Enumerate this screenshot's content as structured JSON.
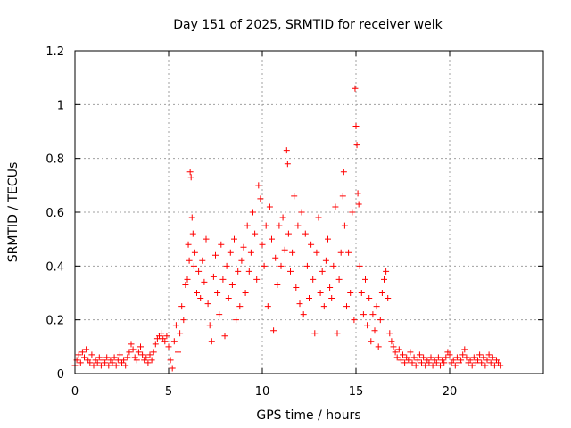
{
  "chart_data": {
    "type": "scatter",
    "title": "Day 151 of 2025, SRMTID for receiver welk",
    "xlabel": "GPS time / hours",
    "ylabel": "SRMTID / TECUs",
    "xlim": [
      0,
      25
    ],
    "ylim": [
      0,
      1.2
    ],
    "xticks": [
      0,
      5,
      10,
      15,
      20
    ],
    "xtick_labels": [
      "0",
      "5",
      "10",
      "15",
      "20"
    ],
    "yticks": [
      0,
      0.2,
      0.4,
      0.6,
      0.8,
      1,
      1.2
    ],
    "ytick_labels": [
      "0",
      "0.2",
      "0.4",
      "0.6",
      "0.8",
      "1",
      "1.2"
    ],
    "grid": true,
    "marker": "+",
    "color": "#ff0000",
    "series": [
      {
        "name": "SRMTID",
        "points": [
          [
            0.0,
            0.03
          ],
          [
            0.1,
            0.05
          ],
          [
            0.2,
            0.07
          ],
          [
            0.3,
            0.04
          ],
          [
            0.4,
            0.08
          ],
          [
            0.5,
            0.06
          ],
          [
            0.6,
            0.09
          ],
          [
            0.7,
            0.05
          ],
          [
            0.8,
            0.04
          ],
          [
            0.9,
            0.07
          ],
          [
            1.0,
            0.03
          ],
          [
            1.1,
            0.05
          ],
          [
            1.2,
            0.04
          ],
          [
            1.3,
            0.06
          ],
          [
            1.4,
            0.03
          ],
          [
            1.5,
            0.05
          ],
          [
            1.6,
            0.04
          ],
          [
            1.7,
            0.06
          ],
          [
            1.8,
            0.03
          ],
          [
            1.9,
            0.05
          ],
          [
            2.0,
            0.04
          ],
          [
            2.1,
            0.06
          ],
          [
            2.2,
            0.03
          ],
          [
            2.3,
            0.05
          ],
          [
            2.4,
            0.07
          ],
          [
            2.5,
            0.04
          ],
          [
            2.6,
            0.05
          ],
          [
            2.7,
            0.03
          ],
          [
            2.8,
            0.06
          ],
          [
            2.9,
            0.08
          ],
          [
            3.0,
            0.11
          ],
          [
            3.1,
            0.09
          ],
          [
            3.2,
            0.06
          ],
          [
            3.3,
            0.05
          ],
          [
            3.4,
            0.08
          ],
          [
            3.5,
            0.1
          ],
          [
            3.6,
            0.07
          ],
          [
            3.7,
            0.05
          ],
          [
            3.8,
            0.06
          ],
          [
            3.9,
            0.04
          ],
          [
            4.0,
            0.07
          ],
          [
            4.1,
            0.05
          ],
          [
            4.2,
            0.08
          ],
          [
            4.3,
            0.11
          ],
          [
            4.4,
            0.13
          ],
          [
            4.5,
            0.14
          ],
          [
            4.6,
            0.15
          ],
          [
            4.7,
            0.13
          ],
          [
            4.8,
            0.12
          ],
          [
            4.9,
            0.14
          ],
          [
            5.0,
            0.1
          ],
          [
            5.1,
            0.05
          ],
          [
            5.2,
            0.02
          ],
          [
            5.3,
            0.12
          ],
          [
            5.4,
            0.18
          ],
          [
            5.5,
            0.08
          ],
          [
            5.6,
            0.15
          ],
          [
            5.7,
            0.25
          ],
          [
            5.8,
            0.2
          ],
          [
            5.9,
            0.33
          ],
          [
            6.0,
            0.35
          ],
          [
            6.05,
            0.48
          ],
          [
            6.1,
            0.42
          ],
          [
            6.15,
            0.75
          ],
          [
            6.2,
            0.73
          ],
          [
            6.25,
            0.58
          ],
          [
            6.3,
            0.52
          ],
          [
            6.35,
            0.4
          ],
          [
            6.4,
            0.45
          ],
          [
            6.5,
            0.3
          ],
          [
            6.6,
            0.38
          ],
          [
            6.7,
            0.28
          ],
          [
            6.8,
            0.42
          ],
          [
            6.9,
            0.34
          ],
          [
            7.0,
            0.5
          ],
          [
            7.1,
            0.26
          ],
          [
            7.2,
            0.18
          ],
          [
            7.3,
            0.12
          ],
          [
            7.4,
            0.36
          ],
          [
            7.5,
            0.44
          ],
          [
            7.6,
            0.3
          ],
          [
            7.7,
            0.22
          ],
          [
            7.8,
            0.48
          ],
          [
            7.9,
            0.35
          ],
          [
            8.0,
            0.14
          ],
          [
            8.1,
            0.4
          ],
          [
            8.2,
            0.28
          ],
          [
            8.3,
            0.45
          ],
          [
            8.4,
            0.33
          ],
          [
            8.5,
            0.5
          ],
          [
            8.6,
            0.2
          ],
          [
            8.7,
            0.38
          ],
          [
            8.8,
            0.25
          ],
          [
            8.9,
            0.42
          ],
          [
            9.0,
            0.47
          ],
          [
            9.1,
            0.3
          ],
          [
            9.2,
            0.55
          ],
          [
            9.3,
            0.38
          ],
          [
            9.4,
            0.45
          ],
          [
            9.5,
            0.6
          ],
          [
            9.6,
            0.52
          ],
          [
            9.7,
            0.35
          ],
          [
            9.8,
            0.7
          ],
          [
            9.9,
            0.65
          ],
          [
            10.0,
            0.48
          ],
          [
            10.1,
            0.4
          ],
          [
            10.2,
            0.55
          ],
          [
            10.3,
            0.25
          ],
          [
            10.4,
            0.62
          ],
          [
            10.5,
            0.5
          ],
          [
            10.6,
            0.16
          ],
          [
            10.7,
            0.43
          ],
          [
            10.8,
            0.33
          ],
          [
            10.9,
            0.55
          ],
          [
            11.0,
            0.4
          ],
          [
            11.1,
            0.58
          ],
          [
            11.2,
            0.46
          ],
          [
            11.3,
            0.83
          ],
          [
            11.35,
            0.78
          ],
          [
            11.4,
            0.52
          ],
          [
            11.5,
            0.38
          ],
          [
            11.6,
            0.45
          ],
          [
            11.7,
            0.66
          ],
          [
            11.8,
            0.32
          ],
          [
            11.9,
            0.55
          ],
          [
            12.0,
            0.26
          ],
          [
            12.1,
            0.6
          ],
          [
            12.2,
            0.22
          ],
          [
            12.3,
            0.52
          ],
          [
            12.4,
            0.4
          ],
          [
            12.5,
            0.28
          ],
          [
            12.6,
            0.48
          ],
          [
            12.7,
            0.35
          ],
          [
            12.8,
            0.15
          ],
          [
            12.9,
            0.45
          ],
          [
            13.0,
            0.58
          ],
          [
            13.1,
            0.3
          ],
          [
            13.2,
            0.38
          ],
          [
            13.3,
            0.25
          ],
          [
            13.4,
            0.42
          ],
          [
            13.5,
            0.5
          ],
          [
            13.6,
            0.32
          ],
          [
            13.7,
            0.28
          ],
          [
            13.8,
            0.4
          ],
          [
            13.9,
            0.62
          ],
          [
            14.0,
            0.15
          ],
          [
            14.1,
            0.35
          ],
          [
            14.2,
            0.45
          ],
          [
            14.3,
            0.66
          ],
          [
            14.35,
            0.75
          ],
          [
            14.4,
            0.55
          ],
          [
            14.5,
            0.25
          ],
          [
            14.6,
            0.45
          ],
          [
            14.7,
            0.3
          ],
          [
            14.8,
            0.6
          ],
          [
            14.9,
            0.2
          ],
          [
            14.95,
            1.06
          ],
          [
            15.0,
            0.92
          ],
          [
            15.05,
            0.85
          ],
          [
            15.1,
            0.67
          ],
          [
            15.15,
            0.63
          ],
          [
            15.2,
            0.4
          ],
          [
            15.3,
            0.3
          ],
          [
            15.4,
            0.22
          ],
          [
            15.5,
            0.35
          ],
          [
            15.6,
            0.18
          ],
          [
            15.7,
            0.28
          ],
          [
            15.8,
            0.12
          ],
          [
            15.9,
            0.22
          ],
          [
            16.0,
            0.16
          ],
          [
            16.1,
            0.25
          ],
          [
            16.2,
            0.1
          ],
          [
            16.3,
            0.2
          ],
          [
            16.4,
            0.3
          ],
          [
            16.5,
            0.35
          ],
          [
            16.6,
            0.38
          ],
          [
            16.7,
            0.28
          ],
          [
            16.8,
            0.15
          ],
          [
            16.9,
            0.12
          ],
          [
            17.0,
            0.1
          ],
          [
            17.1,
            0.08
          ],
          [
            17.2,
            0.06
          ],
          [
            17.3,
            0.09
          ],
          [
            17.4,
            0.05
          ],
          [
            17.5,
            0.07
          ],
          [
            17.6,
            0.04
          ],
          [
            17.7,
            0.06
          ],
          [
            17.8,
            0.05
          ],
          [
            17.9,
            0.08
          ],
          [
            18.0,
            0.04
          ],
          [
            18.1,
            0.06
          ],
          [
            18.2,
            0.03
          ],
          [
            18.3,
            0.05
          ],
          [
            18.4,
            0.07
          ],
          [
            18.5,
            0.04
          ],
          [
            18.6,
            0.06
          ],
          [
            18.7,
            0.03
          ],
          [
            18.8,
            0.05
          ],
          [
            18.9,
            0.04
          ],
          [
            19.0,
            0.06
          ],
          [
            19.1,
            0.03
          ],
          [
            19.2,
            0.05
          ],
          [
            19.3,
            0.04
          ],
          [
            19.4,
            0.06
          ],
          [
            19.5,
            0.03
          ],
          [
            19.6,
            0.05
          ],
          [
            19.7,
            0.04
          ],
          [
            19.8,
            0.06
          ],
          [
            19.9,
            0.08
          ],
          [
            20.0,
            0.07
          ],
          [
            20.1,
            0.04
          ],
          [
            20.2,
            0.05
          ],
          [
            20.3,
            0.03
          ],
          [
            20.4,
            0.06
          ],
          [
            20.5,
            0.04
          ],
          [
            20.6,
            0.05
          ],
          [
            20.7,
            0.07
          ],
          [
            20.8,
            0.09
          ],
          [
            20.9,
            0.06
          ],
          [
            21.0,
            0.04
          ],
          [
            21.1,
            0.05
          ],
          [
            21.2,
            0.03
          ],
          [
            21.3,
            0.06
          ],
          [
            21.4,
            0.04
          ],
          [
            21.5,
            0.05
          ],
          [
            21.6,
            0.07
          ],
          [
            21.7,
            0.04
          ],
          [
            21.8,
            0.06
          ],
          [
            21.9,
            0.03
          ],
          [
            22.0,
            0.05
          ],
          [
            22.1,
            0.07
          ],
          [
            22.2,
            0.04
          ],
          [
            22.3,
            0.06
          ],
          [
            22.4,
            0.03
          ],
          [
            22.5,
            0.05
          ],
          [
            22.6,
            0.04
          ],
          [
            22.7,
            0.03
          ]
        ]
      }
    ]
  }
}
